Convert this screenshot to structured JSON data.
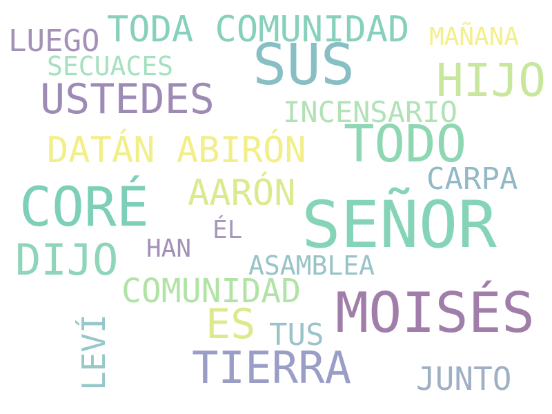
{
  "words": [
    {
      "text": "TODA COMUNIDAD",
      "color": "#86d0bc"
    },
    {
      "text": "LUEGO",
      "color": "#a391b8"
    },
    {
      "text": "SECUACES",
      "color": "#a5e0c0"
    },
    {
      "text": "MAÑANA",
      "color": "#f3ef8c"
    },
    {
      "text": "SUS",
      "color": "#88bfc4"
    },
    {
      "text": "HIJO",
      "color": "#c8e79d"
    },
    {
      "text": "USTEDES",
      "color": "#9d8ab5"
    },
    {
      "text": "INCENSARIO",
      "color": "#b1e2b6"
    },
    {
      "text": "TODO",
      "color": "#8fd7b3"
    },
    {
      "text": "DATÁN ABIRÓN",
      "color": "#f2ef88"
    },
    {
      "text": "CARPA",
      "color": "#93b9c6"
    },
    {
      "text": "CORÉ",
      "color": "#7dcfb8"
    },
    {
      "text": "AARÓN",
      "color": "#dde98f"
    },
    {
      "text": "SEÑOR",
      "color": "#86d4b7"
    },
    {
      "text": "ÉL",
      "color": "#a797bd"
    },
    {
      "text": "HAN",
      "color": "#a390b7"
    },
    {
      "text": "DIJO",
      "color": "#8ed5ba"
    },
    {
      "text": "ASAMBLEA",
      "color": "#97c3c7"
    },
    {
      "text": "COMUNIDAD",
      "color": "#b2e3a6"
    },
    {
      "text": "MOISÉS",
      "color": "#a07ea9"
    },
    {
      "text": "ES",
      "color": "#dde98b"
    },
    {
      "text": "TUS",
      "color": "#97c3c9"
    },
    {
      "text": "LEVÍ",
      "color": "#96c7c9"
    },
    {
      "text": "TIERRA",
      "color": "#9a9ec6"
    },
    {
      "text": "JUNTO",
      "color": "#9fb0c4"
    }
  ]
}
